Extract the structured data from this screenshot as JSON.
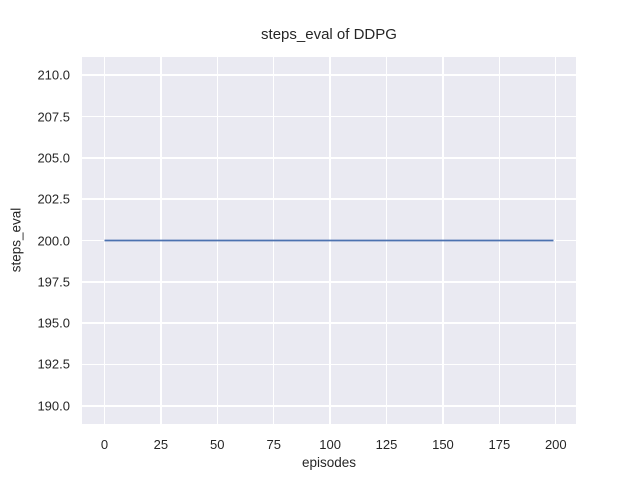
{
  "chart_data": {
    "type": "line",
    "title": "steps_eval of DDPG",
    "xlabel": "episodes",
    "ylabel": "steps_eval",
    "xlim": [
      -9.95,
      208.95
    ],
    "ylim": [
      188.9,
      211.1
    ],
    "x_ticks": [
      0,
      25,
      50,
      75,
      100,
      125,
      150,
      175,
      200
    ],
    "x_tick_labels": [
      "0",
      "25",
      "50",
      "75",
      "100",
      "125",
      "150",
      "175",
      "200"
    ],
    "y_ticks": [
      190.0,
      192.5,
      195.0,
      197.5,
      200.0,
      202.5,
      205.0,
      207.5,
      210.0
    ],
    "y_tick_labels": [
      "190.0",
      "192.5",
      "195.0",
      "197.5",
      "200.0",
      "202.5",
      "205.0",
      "207.5",
      "210.0"
    ],
    "grid": true,
    "legend_position": "none",
    "series": [
      {
        "name": "steps_eval",
        "x": [
          0,
          199
        ],
        "y": [
          200,
          200
        ],
        "color": "#4c72b0",
        "line_width": 1.8
      }
    ],
    "colors": {
      "figure_bg": "#ffffff",
      "axes_bg": "#eaeaf2",
      "grid": "#ffffff",
      "text": "#262626",
      "line": "#4c72b0"
    }
  }
}
